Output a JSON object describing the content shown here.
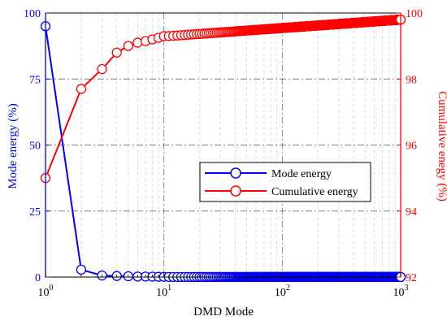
{
  "chart_data": {
    "type": "line",
    "xlabel": "DMD Mode",
    "ylabel_left": "Mode energy (%)",
    "ylabel_right": "Cumulative enegy (%)",
    "x_scale": "log",
    "xlim": [
      1,
      1000
    ],
    "ylim_left": [
      0,
      100
    ],
    "ylim_right": [
      92,
      100
    ],
    "x_tick_labels": [
      {
        "value": 1,
        "base": "10",
        "exp": "0"
      },
      {
        "value": 10,
        "base": "10",
        "exp": "1"
      },
      {
        "value": 100,
        "base": "10",
        "exp": "2"
      },
      {
        "value": 1000,
        "base": "10",
        "exp": "3"
      }
    ],
    "y_left_ticks": [
      "0",
      "25",
      "50",
      "75",
      "100"
    ],
    "y_right_ticks": [
      "92",
      "94",
      "96",
      "98",
      "100"
    ],
    "grid": true,
    "legend_position": "center-right",
    "series": [
      {
        "name": "Mode energy",
        "axis": "left",
        "color": "#0000ff",
        "marker": "open-circle",
        "points_explicit": [
          [
            1,
            95
          ],
          [
            2,
            2.8
          ],
          [
            3,
            0.6
          ],
          [
            4,
            0.4
          ],
          [
            5,
            0.3
          ],
          [
            6,
            0.2
          ],
          [
            7,
            0.2
          ],
          [
            8,
            0.15
          ],
          [
            9,
            0.1
          ],
          [
            10,
            0.1
          ]
        ],
        "continuation": {
          "from": 11,
          "to": 1000,
          "value": 0.05
        }
      },
      {
        "name": "Cumulative energy",
        "axis": "right",
        "color": "#ff0000",
        "marker": "open-circle",
        "points_explicit": [
          [
            1,
            95.0
          ],
          [
            2,
            97.7
          ],
          [
            3,
            98.3
          ],
          [
            4,
            98.8
          ],
          [
            5,
            99.0
          ],
          [
            6,
            99.1
          ],
          [
            7,
            99.15
          ],
          [
            8,
            99.2
          ],
          [
            9,
            99.25
          ],
          [
            10,
            99.3
          ]
        ],
        "continuation": {
          "from": 11,
          "to": 1000,
          "start_value": 99.3,
          "end_value": 99.8
        }
      }
    ]
  }
}
